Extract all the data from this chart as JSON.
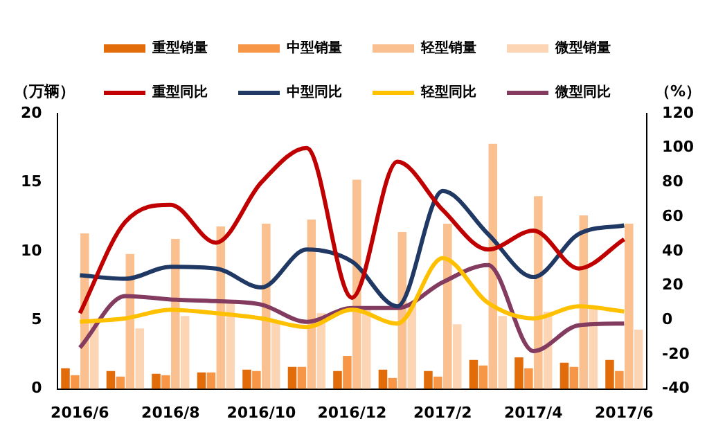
{
  "chart_data": {
    "type": "bar",
    "ylabel": "（万辆）",
    "y2label": "（%）",
    "categories": [
      "2016/6",
      null,
      "2016/8",
      null,
      "2016/10",
      null,
      "2016/12",
      null,
      "2017/2",
      null,
      "2017/4",
      null,
      "2017/6"
    ],
    "series": [
      {
        "name": "重型销量",
        "color": "#e36c0a",
        "values": [
          1.5,
          1.3,
          1.1,
          1.2,
          1.4,
          1.6,
          1.3,
          1.4,
          1.3,
          2.1,
          2.3,
          1.9,
          2.1
        ]
      },
      {
        "name": "中型销量",
        "color": "#f79646",
        "values": [
          1.0,
          0.9,
          1.0,
          1.2,
          1.3,
          1.6,
          2.4,
          0.8,
          0.9,
          1.7,
          1.5,
          1.6,
          1.3
        ]
      },
      {
        "name": "轻型销量",
        "color": "#fac090",
        "values": [
          11.3,
          9.8,
          10.9,
          11.8,
          12.0,
          12.3,
          15.2,
          11.4,
          12.0,
          17.8,
          14.0,
          12.6,
          12.0
        ]
      },
      {
        "name": "微型销量",
        "color": "#fcd5b5",
        "values": [
          5.0,
          4.4,
          5.3,
          6.2,
          5.0,
          5.5,
          5.9,
          6.2,
          4.7,
          5.3,
          5.6,
          5.9,
          4.3
        ]
      },
      {
        "name": "重型同比",
        "type": "line",
        "axis": "y2",
        "color": "#c00000",
        "values": [
          4,
          57,
          67,
          45,
          80,
          100,
          13,
          92,
          64,
          41,
          52,
          30,
          47
        ]
      },
      {
        "name": "中型同比",
        "type": "line",
        "axis": "y2",
        "color": "#1f3864",
        "values": [
          26,
          24,
          31,
          30,
          19,
          41,
          34,
          8,
          75,
          50,
          25,
          50,
          55
        ]
      },
      {
        "name": "轻型同比",
        "type": "line",
        "axis": "y2",
        "color": "#ffc000",
        "values": [
          -1,
          1,
          6,
          4,
          1,
          -4,
          6,
          -2,
          36,
          10,
          1,
          8,
          5
        ]
      },
      {
        "name": "微型同比",
        "type": "line",
        "axis": "y2",
        "color": "#833c5f",
        "values": [
          -16,
          14,
          12,
          11,
          9,
          -1,
          7,
          7,
          22,
          32,
          -18,
          -3,
          -2
        ]
      }
    ],
    "ylim": [
      0,
      20
    ],
    "yticks": [
      0,
      5,
      10,
      15,
      20
    ],
    "y2lim": [
      -40,
      120
    ],
    "y2ticks": [
      -40,
      -20,
      0,
      20,
      40,
      60,
      80,
      100,
      120
    ],
    "grid": false,
    "legend": "top",
    "marker": "none",
    "line_style": "solid"
  }
}
